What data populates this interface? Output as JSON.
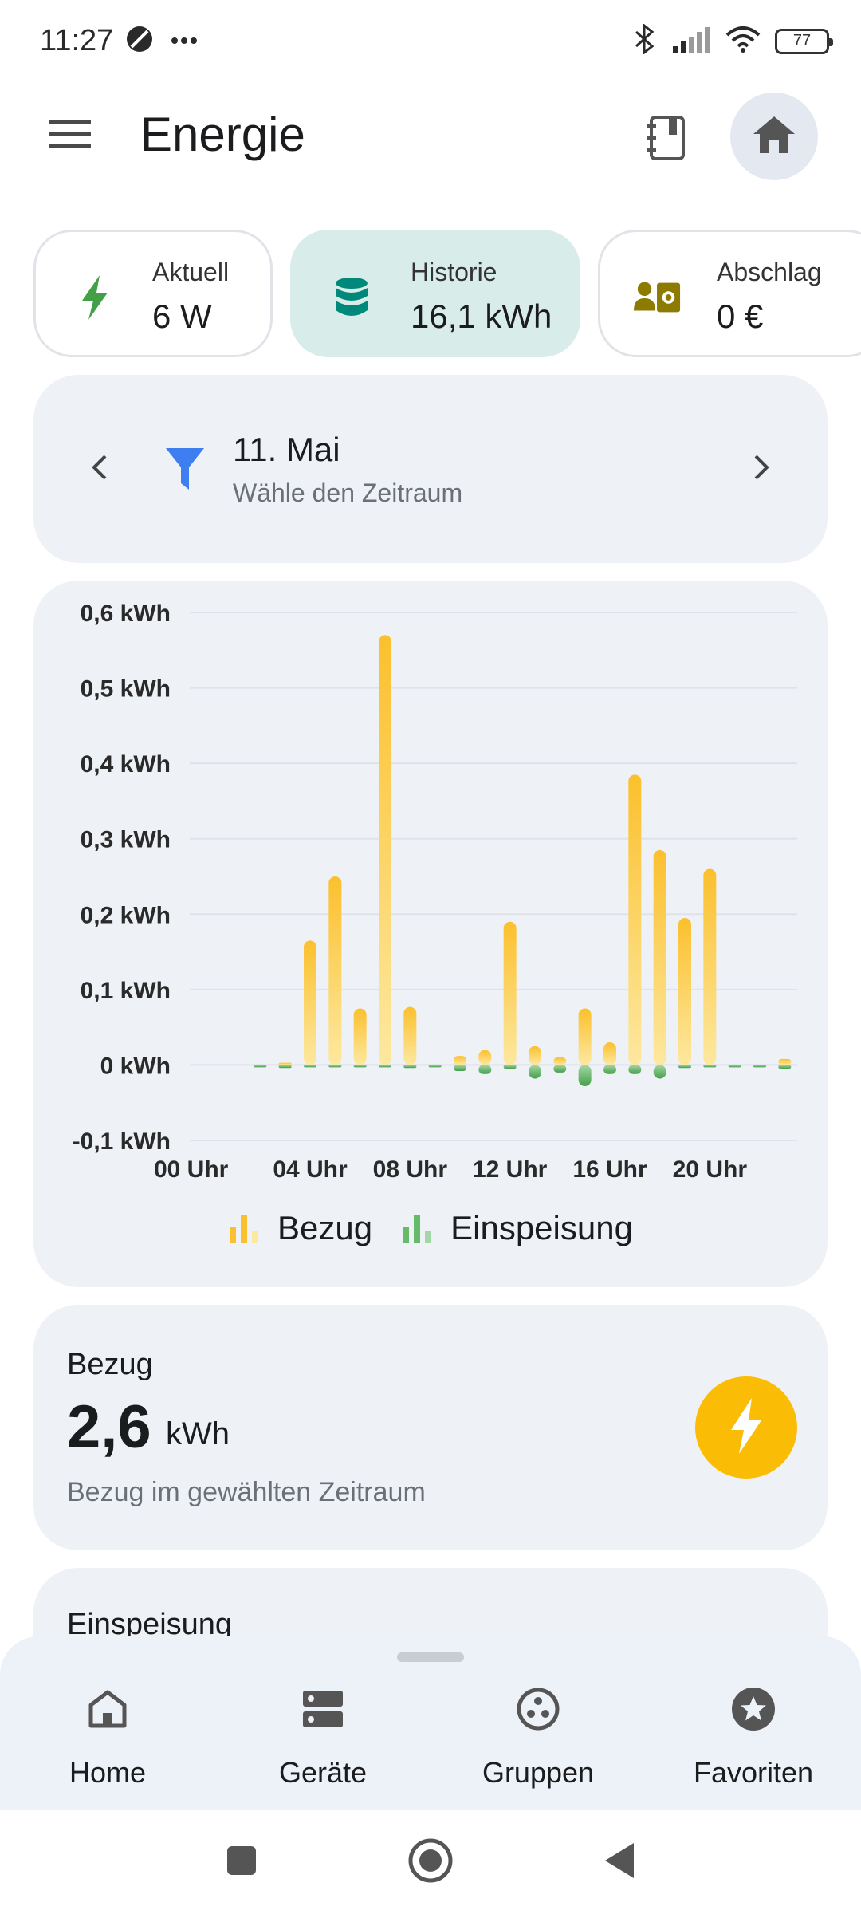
{
  "status_bar": {
    "time": "11:27",
    "battery": "77",
    "icons": [
      "do-not-disturb-icon",
      "more-dots-icon",
      "bluetooth-icon",
      "signal-icon",
      "wifi-icon",
      "battery-icon"
    ]
  },
  "app_bar": {
    "title": "Energie",
    "icons": [
      "menu-icon",
      "journal-icon",
      "home-icon"
    ]
  },
  "chips": [
    {
      "label": "Aktuell",
      "value": "6 W",
      "icon": "bolt-icon",
      "active": false,
      "color": "#43a047"
    },
    {
      "label": "Historie",
      "value": "16,1 kWh",
      "icon": "database-icon",
      "active": true,
      "color": "#00897b"
    },
    {
      "label": "Abschlag",
      "value": "0 €",
      "icon": "payment-icon",
      "active": false,
      "color": "#8d7a00"
    }
  ],
  "date_picker": {
    "title": "11. Mai",
    "subtitle": "Wähle den Zeitraum",
    "icons": [
      "chevron-left-icon",
      "filter-icon",
      "chevron-right-icon"
    ]
  },
  "chart_data": {
    "type": "bar",
    "x": [
      "00",
      "01",
      "02",
      "03",
      "04",
      "05",
      "06",
      "07",
      "08",
      "09",
      "10",
      "11",
      "12",
      "13",
      "14",
      "15",
      "16",
      "17",
      "18",
      "19",
      "20",
      "21",
      "22",
      "23"
    ],
    "tick_labels": [
      "00 Uhr",
      "04 Uhr",
      "08 Uhr",
      "12 Uhr",
      "16 Uhr",
      "20 Uhr"
    ],
    "y_tick_labels": [
      "0,6 kWh",
      "0,5 kWh",
      "0,4 kWh",
      "0,3 kWh",
      "0,2 kWh",
      "0,1 kWh",
      "0 kWh",
      "-0,1 kWh"
    ],
    "ylim": [
      -0.1,
      0.6
    ],
    "grid": true,
    "legend_position": "bottom-center",
    "series": [
      {
        "name": "Bezug",
        "color": "#fbc02d",
        "values": [
          0,
          0,
          0,
          0.003,
          0.165,
          0.25,
          0.075,
          0.57,
          0.077,
          0,
          0.012,
          0.02,
          0.19,
          0.025,
          0.01,
          0.075,
          0.03,
          0.385,
          0.285,
          0.195,
          0.26,
          0,
          0,
          0.008
        ]
      },
      {
        "name": "Einspeisung",
        "color": "#66bb6a",
        "values": [
          0,
          0,
          -0.001,
          -0.004,
          -0.002,
          -0.002,
          -0.001,
          -0.003,
          -0.004,
          -0.003,
          -0.008,
          -0.012,
          -0.005,
          -0.018,
          -0.01,
          -0.028,
          -0.012,
          -0.012,
          -0.018,
          -0.004,
          -0.003,
          -0.002,
          -0.002,
          -0.005
        ]
      }
    ]
  },
  "bezug_card": {
    "title": "Bezug",
    "value": "2,6",
    "unit": "kWh",
    "description": "Bezug im gewählten Zeitraum",
    "icon": "bolt-icon",
    "accent": "#fbbc05"
  },
  "einspeisung_card": {
    "title": "Einspeisung"
  },
  "bottom_nav": {
    "items": [
      {
        "label": "Home",
        "icon": "home-outline-icon"
      },
      {
        "label": "Geräte",
        "icon": "devices-icon"
      },
      {
        "label": "Gruppen",
        "icon": "groups-icon"
      },
      {
        "label": "Favoriten",
        "icon": "star-circle-icon"
      }
    ]
  },
  "system_nav": {
    "icons": [
      "recents-icon",
      "home-circle-icon",
      "back-icon"
    ]
  }
}
